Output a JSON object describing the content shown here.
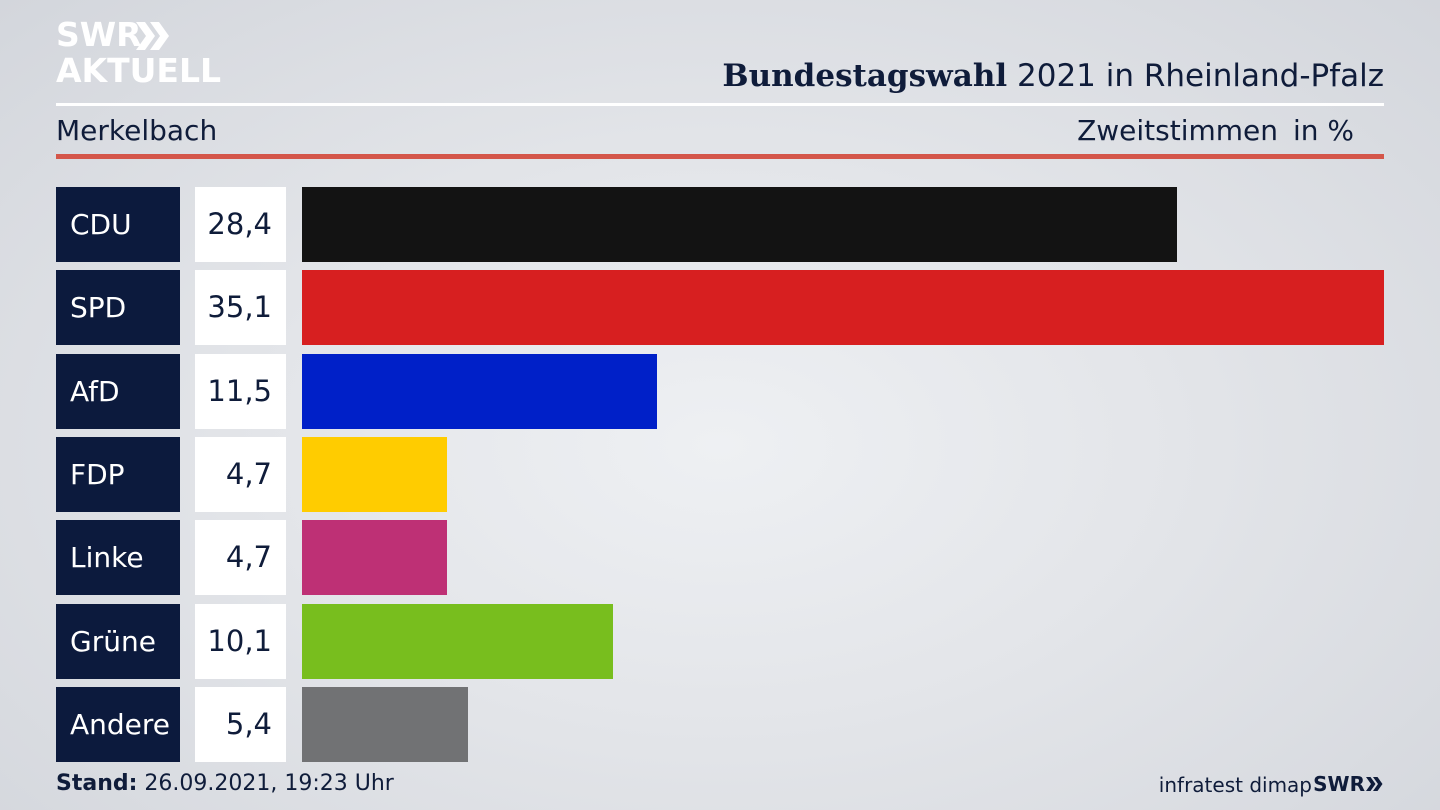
{
  "logo": {
    "line1": "SWR",
    "line2": "AKTUELL"
  },
  "header": {
    "title_bold": "Bundestagswahl",
    "title_rest": " 2021 in Rheinland-Pfalz",
    "region": "Merkelbach",
    "vote_type": "Zweitstimmen",
    "unit": "in %"
  },
  "chart_data": {
    "type": "bar",
    "orientation": "horizontal",
    "categories": [
      "CDU",
      "SPD",
      "AfD",
      "FDP",
      "Linke",
      "Grüne",
      "Andere"
    ],
    "values": [
      28.4,
      35.1,
      11.5,
      4.7,
      4.7,
      10.1,
      5.4
    ],
    "value_labels": [
      "28,4",
      "35,1",
      "11,5",
      "4,7",
      "4,7",
      "10,1",
      "5,4"
    ],
    "colors": [
      "#131313",
      "#d71f20",
      "#0020c8",
      "#ffcc00",
      "#be3075",
      "#78be1e",
      "#717274"
    ],
    "title": "Bundestagswahl 2021 in Rheinland-Pfalz",
    "xlabel": "",
    "ylabel": "",
    "xlim": [
      0,
      35.1
    ]
  },
  "footer": {
    "stand_label": "Stand:",
    "stand_value": " 26.09.2021, 19:23 Uhr",
    "source": "infratest dimap",
    "broadcaster": "SWR"
  }
}
